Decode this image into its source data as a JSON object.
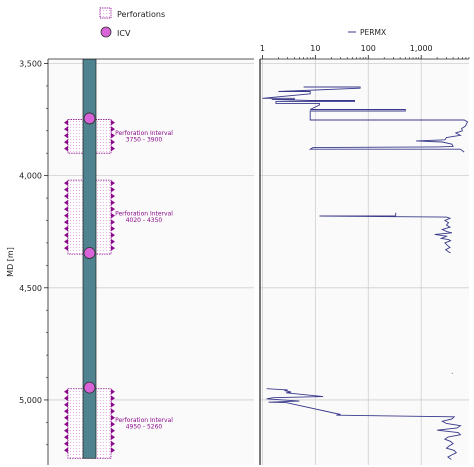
{
  "legend_left": {
    "perforations_label": "Perforations",
    "icv_label": "ICV"
  },
  "chart_data": [
    {
      "type": "well-schematic",
      "ylabel": "MD [m]",
      "ylim": [
        3480,
        5290
      ],
      "yticks_major": [
        3500,
        4000,
        4500,
        5000
      ],
      "ytick_labels": [
        "3,500",
        "4,000",
        "4,500",
        "5,000"
      ],
      "yticks_minor_step": 100,
      "grid": true,
      "tubing_color": "#4f8390",
      "perforation_color": "#8b0a8b",
      "icv_color": "#d964d9",
      "perforations": [
        {
          "top": 3750,
          "bottom": 3900,
          "label_line1": "Perforation Interval",
          "label_line2": "3750 - 3900"
        },
        {
          "top": 4020,
          "bottom": 4350,
          "label_line1": "Perforation Interval",
          "label_line2": "4020 - 4350"
        },
        {
          "top": 4950,
          "bottom": 5260,
          "label_line1": "Perforation Interval",
          "label_line2": "4950 - 5260"
        }
      ],
      "icvs": [
        3745,
        4345,
        4945
      ]
    },
    {
      "type": "line",
      "xscale": "log",
      "xlim": [
        0.9,
        8000
      ],
      "xticks": [
        1,
        10,
        100,
        1000
      ],
      "xtick_labels": [
        "1",
        "10",
        "100",
        "1,000"
      ],
      "ylim": [
        3480,
        5290
      ],
      "grid": true,
      "legend_position": "top-right",
      "series": [
        {
          "name": "PERMX",
          "color": "#3a3a8c",
          "points": [
            [
              6,
              3605
            ],
            [
              70,
              3605
            ],
            [
              70,
              3610
            ],
            [
              2,
              3625
            ],
            [
              8,
              3625
            ],
            [
              8,
              3635
            ],
            [
              1,
              3655
            ],
            [
              4,
              3655
            ],
            [
              4,
              3660
            ],
            [
              1.5,
              3660
            ],
            [
              8,
              3665
            ],
            [
              55,
              3665
            ],
            [
              55,
              3670
            ],
            [
              1.8,
              3670
            ],
            [
              1.8,
              3678
            ],
            [
              12,
              3678
            ],
            [
              12,
              3685
            ],
            [
              8,
              3705
            ],
            [
              400,
              3705
            ],
            [
              500,
              3705
            ],
            [
              500,
              3712
            ],
            [
              8,
              3712
            ],
            [
              8,
              3752
            ],
            [
              6500,
              3752
            ],
            [
              7500,
              3760
            ],
            [
              6800,
              3780
            ],
            [
              5800,
              3790
            ],
            [
              6000,
              3800
            ],
            [
              4500,
              3810
            ],
            [
              5500,
              3820
            ],
            [
              3000,
              3830
            ],
            [
              2800,
              3840
            ],
            [
              800,
              3845
            ],
            [
              2500,
              3850
            ],
            [
              3800,
              3860
            ],
            [
              4000,
              3870
            ],
            [
              2000,
              3872
            ],
            [
              9,
              3875
            ],
            [
              8,
              3882
            ],
            [
              5500,
              3882
            ],
            [
              6500,
              3895
            ]
          ]
        },
        {
          "name": "PERMX",
          "color": "#3a3a8c",
          "points": [
            [
              330,
              4165
            ],
            [
              330,
              4180
            ],
            [
              12,
              4180
            ],
            [
              3000,
              4185
            ],
            [
              3500,
              4190
            ],
            [
              2800,
              4200
            ],
            [
              3300,
              4210
            ],
            [
              3000,
              4220
            ],
            [
              3500,
              4230
            ],
            [
              2500,
              4240
            ],
            [
              3100,
              4250
            ],
            [
              3800,
              4255
            ],
            [
              1800,
              4262
            ],
            [
              3000,
              4270
            ],
            [
              2400,
              4280
            ],
            [
              3300,
              4285
            ],
            [
              3600,
              4290
            ],
            [
              2800,
              4300
            ],
            [
              3100,
              4310
            ],
            [
              3500,
              4320
            ],
            [
              2900,
              4330
            ],
            [
              3300,
              4340
            ],
            [
              3600,
              4345
            ]
          ]
        },
        {
          "name": "PERMX",
          "color": "#3a3a8c",
          "points": [
            [
              3800,
              4880
            ],
            [
              3900,
              4882
            ]
          ]
        },
        {
          "name": "PERMX",
          "color": "#3a3a8c",
          "points": [
            [
              1.2,
              4950
            ],
            [
              3,
              4955
            ],
            [
              2.6,
              4958
            ],
            [
              3.5,
              4965
            ],
            [
              2.8,
              4968
            ],
            [
              14,
              4985
            ],
            [
              1.6,
              4990
            ],
            [
              1.2,
              4995
            ],
            [
              5,
              5005
            ],
            [
              1.3,
              5010
            ],
            [
              2.8,
              5012
            ],
            [
              30,
              5065
            ],
            [
              25,
              5068
            ],
            [
              4200,
              5075
            ],
            [
              3800,
              5085
            ],
            [
              2500,
              5095
            ],
            [
              3000,
              5105
            ],
            [
              5500,
              5115
            ],
            [
              4800,
              5125
            ],
            [
              2000,
              5135
            ],
            [
              5000,
              5145
            ],
            [
              5500,
              5155
            ],
            [
              3200,
              5165
            ],
            [
              2800,
              5175
            ],
            [
              3600,
              5185
            ],
            [
              4000,
              5195
            ],
            [
              3400,
              5205
            ],
            [
              3000,
              5215
            ],
            [
              4200,
              5225
            ],
            [
              4600,
              5235
            ],
            [
              3800,
              5245
            ],
            [
              3200,
              5255
            ],
            [
              3700,
              5265
            ]
          ]
        }
      ]
    }
  ]
}
